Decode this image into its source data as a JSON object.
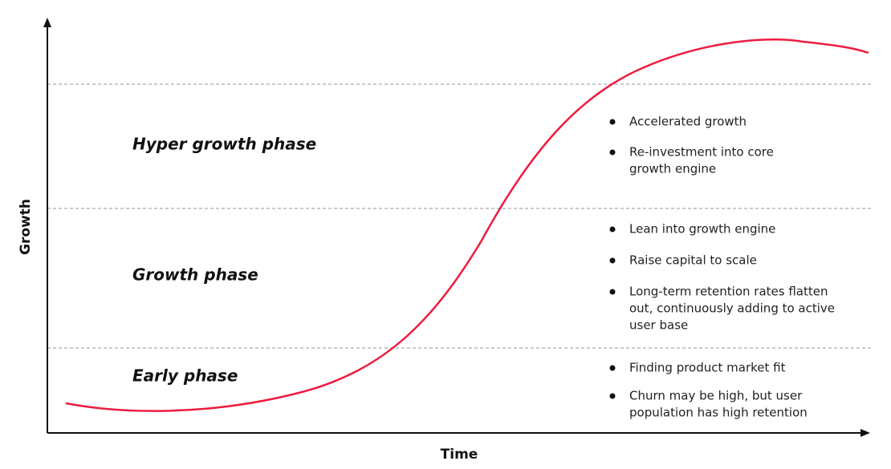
{
  "axes": {
    "y_label": "Growth",
    "x_label": "Time"
  },
  "phases": [
    {
      "name": "Hyper growth phase",
      "bullets": [
        [
          "Accelerated growth"
        ],
        [
          "Re-investment into core",
          "growth engine"
        ]
      ]
    },
    {
      "name": "Growth phase",
      "bullets": [
        [
          "Lean into growth engine"
        ],
        [
          "Raise capital to scale"
        ],
        [
          "Long-term retention rates flatten",
          "out, continuously adding to active",
          "user base"
        ]
      ]
    },
    {
      "name": "Early phase",
      "bullets": [
        [
          "Finding product market fit"
        ],
        [
          "Churn may be high, but user",
          "population has high retention"
        ]
      ]
    }
  ]
}
